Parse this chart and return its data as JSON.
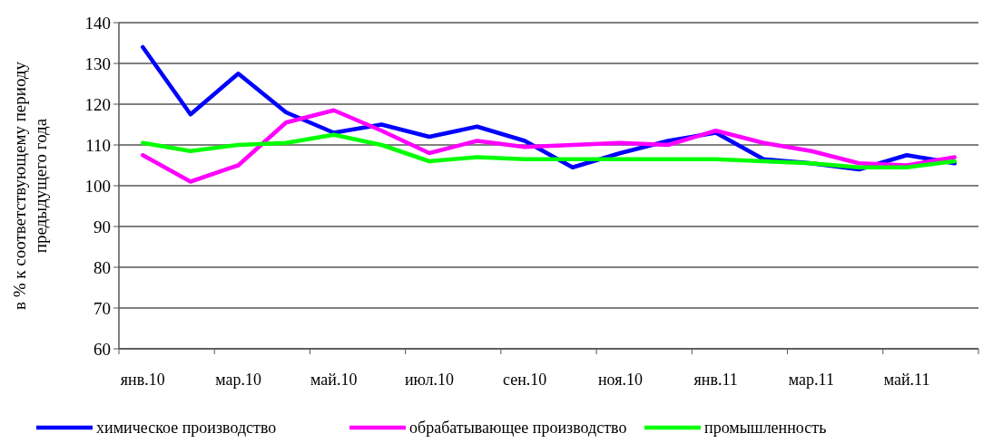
{
  "chart_data": {
    "type": "line",
    "ylabel": "в % к соответствующему периоду предыдущего года",
    "categories": [
      "янв.10",
      null,
      "мар.10",
      null,
      "май.10",
      null,
      "июл.10",
      null,
      "сен.10",
      null,
      "ноя.10",
      null,
      "янв.11",
      null,
      "мар.11",
      null,
      "май.11",
      null
    ],
    "series": [
      {
        "name": "химическое производство",
        "color": "#0000ff",
        "values": [
          134,
          117.5,
          127.5,
          118,
          113,
          115,
          112,
          114.5,
          111,
          104.5,
          108,
          111,
          113,
          106.5,
          105.5,
          104,
          107.5,
          105.5
        ]
      },
      {
        "name": "обрабатывающее производство",
        "color": "#ff00ff",
        "values": [
          107.5,
          101,
          105,
          115.5,
          118.5,
          113.5,
          108,
          111,
          109.5,
          110,
          110.5,
          110,
          113.5,
          110.5,
          108.5,
          105.5,
          105,
          107
        ]
      },
      {
        "name": "промышленность",
        "color": "#00ff00",
        "values": [
          110.5,
          108.5,
          110,
          110.5,
          112.5,
          110,
          106,
          107,
          106.5,
          106.5,
          106.5,
          106.5,
          106.5,
          106,
          105.5,
          104.5,
          104.5,
          106
        ]
      }
    ],
    "ylim": [
      60,
      140
    ],
    "yticks": [
      60,
      70,
      80,
      90,
      100,
      110,
      120,
      130,
      140
    ],
    "grid": "y",
    "legend": "bottom",
    "marker": "none",
    "line_style": "solid"
  }
}
